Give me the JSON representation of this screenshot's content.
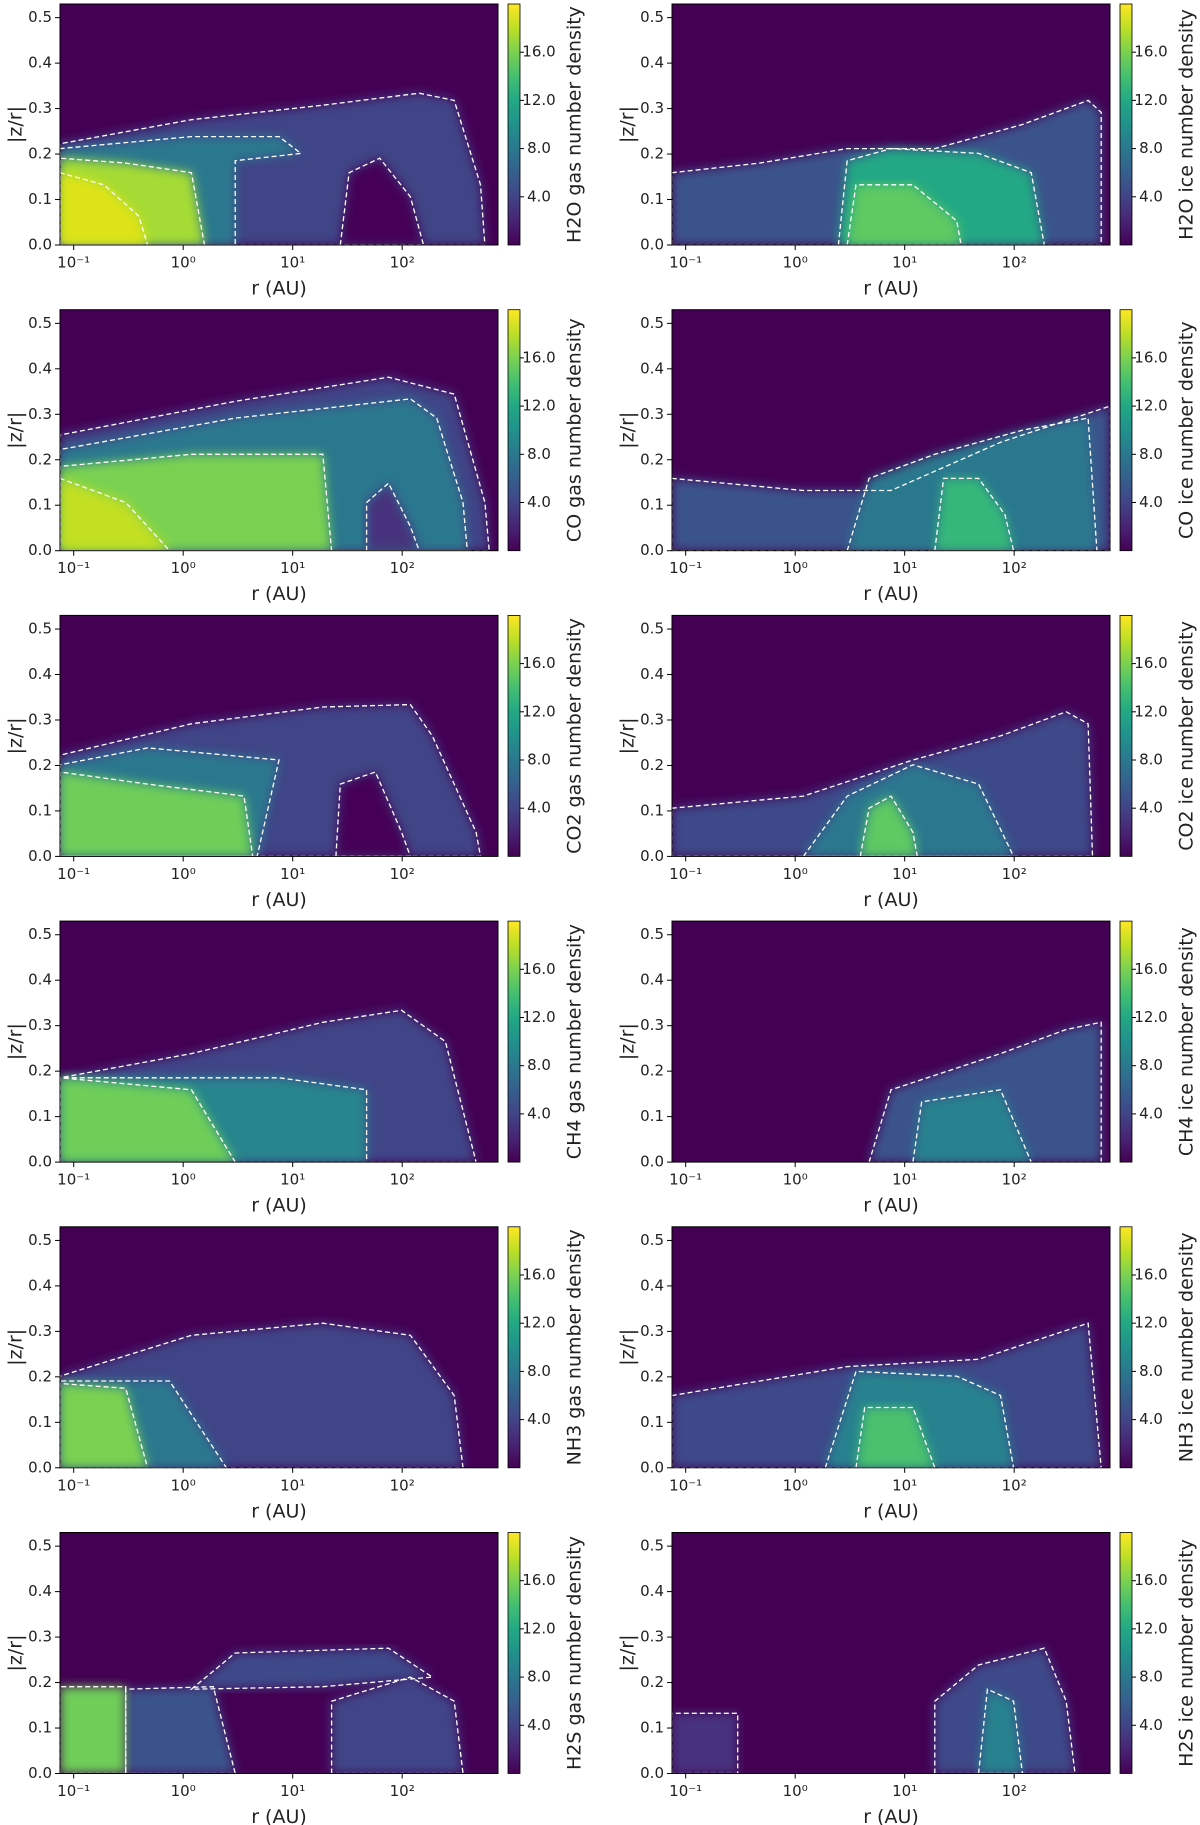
{
  "chart_data": [
    {
      "type": "heatmap",
      "colorbar_label": "H2O gas number density",
      "xlabel": "r (AU)",
      "ylabel": "|z/r|",
      "colormap": "viridis",
      "log_x": true,
      "xlim": [
        0.075,
        750
      ],
      "ylim": [
        0,
        0.53
      ],
      "clim": [
        0,
        20
      ],
      "xticks": [
        {
          "value": 0.1,
          "label": "10⁻¹"
        },
        {
          "value": 1,
          "label": "10⁰"
        },
        {
          "value": 10,
          "label": "10¹"
        },
        {
          "value": 100,
          "label": "10²"
        }
      ],
      "yticks": [
        {
          "value": 0,
          "label": "0.0"
        },
        {
          "value": 0.1,
          "label": "0.1"
        },
        {
          "value": 0.2,
          "label": "0.2"
        },
        {
          "value": 0.3,
          "label": "0.3"
        },
        {
          "value": 0.4,
          "label": "0.4"
        },
        {
          "value": 0.5,
          "label": "0.5"
        }
      ],
      "cticks": [
        {
          "value": 4,
          "label": "4.0"
        },
        {
          "value": 8,
          "label": "8.0"
        },
        {
          "value": 12,
          "label": "12.0"
        },
        {
          "value": 16,
          "label": "16.0"
        }
      ]
    },
    {
      "type": "heatmap",
      "colorbar_label": "H2O ice number density",
      "xlabel": "r (AU)",
      "ylabel": "|z/r|",
      "colormap": "viridis",
      "log_x": true,
      "xlim": [
        0.075,
        750
      ],
      "ylim": [
        0,
        0.53
      ],
      "clim": [
        0,
        20
      ],
      "xticks": [
        {
          "value": 0.1,
          "label": "10⁻¹"
        },
        {
          "value": 1,
          "label": "10⁰"
        },
        {
          "value": 10,
          "label": "10¹"
        },
        {
          "value": 100,
          "label": "10²"
        }
      ],
      "yticks": [
        {
          "value": 0,
          "label": "0.0"
        },
        {
          "value": 0.1,
          "label": "0.1"
        },
        {
          "value": 0.2,
          "label": "0.2"
        },
        {
          "value": 0.3,
          "label": "0.3"
        },
        {
          "value": 0.4,
          "label": "0.4"
        },
        {
          "value": 0.5,
          "label": "0.5"
        }
      ],
      "cticks": [
        {
          "value": 4,
          "label": "4.0"
        },
        {
          "value": 8,
          "label": "8.0"
        },
        {
          "value": 12,
          "label": "12.0"
        },
        {
          "value": 16,
          "label": "16.0"
        }
      ]
    },
    {
      "type": "heatmap",
      "colorbar_label": "CO gas number density",
      "xlabel": "r (AU)",
      "ylabel": "|z/r|",
      "colormap": "viridis",
      "log_x": true,
      "xlim": [
        0.075,
        750
      ],
      "ylim": [
        0,
        0.53
      ],
      "clim": [
        0,
        20
      ],
      "xticks": [
        {
          "value": 0.1,
          "label": "10⁻¹"
        },
        {
          "value": 1,
          "label": "10⁰"
        },
        {
          "value": 10,
          "label": "10¹"
        },
        {
          "value": 100,
          "label": "10²"
        }
      ],
      "yticks": [
        {
          "value": 0,
          "label": "0.0"
        },
        {
          "value": 0.1,
          "label": "0.1"
        },
        {
          "value": 0.2,
          "label": "0.2"
        },
        {
          "value": 0.3,
          "label": "0.3"
        },
        {
          "value": 0.4,
          "label": "0.4"
        },
        {
          "value": 0.5,
          "label": "0.5"
        }
      ],
      "cticks": [
        {
          "value": 4,
          "label": "4.0"
        },
        {
          "value": 8,
          "label": "8.0"
        },
        {
          "value": 12,
          "label": "12.0"
        },
        {
          "value": 16,
          "label": "16.0"
        }
      ]
    },
    {
      "type": "heatmap",
      "colorbar_label": "CO ice number density",
      "xlabel": "r (AU)",
      "ylabel": "|z/r|",
      "colormap": "viridis",
      "log_x": true,
      "xlim": [
        0.075,
        750
      ],
      "ylim": [
        0,
        0.53
      ],
      "clim": [
        0,
        20
      ],
      "xticks": [
        {
          "value": 0.1,
          "label": "10⁻¹"
        },
        {
          "value": 1,
          "label": "10⁰"
        },
        {
          "value": 10,
          "label": "10¹"
        },
        {
          "value": 100,
          "label": "10²"
        }
      ],
      "yticks": [
        {
          "value": 0,
          "label": "0.0"
        },
        {
          "value": 0.1,
          "label": "0.1"
        },
        {
          "value": 0.2,
          "label": "0.2"
        },
        {
          "value": 0.3,
          "label": "0.3"
        },
        {
          "value": 0.4,
          "label": "0.4"
        },
        {
          "value": 0.5,
          "label": "0.5"
        }
      ],
      "cticks": [
        {
          "value": 4,
          "label": "4.0"
        },
        {
          "value": 8,
          "label": "8.0"
        },
        {
          "value": 12,
          "label": "12.0"
        },
        {
          "value": 16,
          "label": "16.0"
        }
      ]
    },
    {
      "type": "heatmap",
      "colorbar_label": "CO2 gas number density",
      "xlabel": "r (AU)",
      "ylabel": "|z/r|",
      "colormap": "viridis",
      "log_x": true,
      "xlim": [
        0.075,
        750
      ],
      "ylim": [
        0,
        0.53
      ],
      "clim": [
        0,
        20
      ],
      "xticks": [
        {
          "value": 0.1,
          "label": "10⁻¹"
        },
        {
          "value": 1,
          "label": "10⁰"
        },
        {
          "value": 10,
          "label": "10¹"
        },
        {
          "value": 100,
          "label": "10²"
        }
      ],
      "yticks": [
        {
          "value": 0,
          "label": "0.0"
        },
        {
          "value": 0.1,
          "label": "0.1"
        },
        {
          "value": 0.2,
          "label": "0.2"
        },
        {
          "value": 0.3,
          "label": "0.3"
        },
        {
          "value": 0.4,
          "label": "0.4"
        },
        {
          "value": 0.5,
          "label": "0.5"
        }
      ],
      "cticks": [
        {
          "value": 4,
          "label": "4.0"
        },
        {
          "value": 8,
          "label": "8.0"
        },
        {
          "value": 12,
          "label": "12.0"
        },
        {
          "value": 16,
          "label": "16.0"
        }
      ]
    },
    {
      "type": "heatmap",
      "colorbar_label": "CO2 ice number density",
      "xlabel": "r (AU)",
      "ylabel": "|z/r|",
      "colormap": "viridis",
      "log_x": true,
      "xlim": [
        0.075,
        750
      ],
      "ylim": [
        0,
        0.53
      ],
      "clim": [
        0,
        20
      ],
      "xticks": [
        {
          "value": 0.1,
          "label": "10⁻¹"
        },
        {
          "value": 1,
          "label": "10⁰"
        },
        {
          "value": 10,
          "label": "10¹"
        },
        {
          "value": 100,
          "label": "10²"
        }
      ],
      "yticks": [
        {
          "value": 0,
          "label": "0.0"
        },
        {
          "value": 0.1,
          "label": "0.1"
        },
        {
          "value": 0.2,
          "label": "0.2"
        },
        {
          "value": 0.3,
          "label": "0.3"
        },
        {
          "value": 0.4,
          "label": "0.4"
        },
        {
          "value": 0.5,
          "label": "0.5"
        }
      ],
      "cticks": [
        {
          "value": 4,
          "label": "4.0"
        },
        {
          "value": 8,
          "label": "8.0"
        },
        {
          "value": 12,
          "label": "12.0"
        },
        {
          "value": 16,
          "label": "16.0"
        }
      ]
    },
    {
      "type": "heatmap",
      "colorbar_label": "CH4 gas number density",
      "xlabel": "r (AU)",
      "ylabel": "|z/r|",
      "colormap": "viridis",
      "log_x": true,
      "xlim": [
        0.075,
        750
      ],
      "ylim": [
        0,
        0.53
      ],
      "clim": [
        0,
        20
      ],
      "xticks": [
        {
          "value": 0.1,
          "label": "10⁻¹"
        },
        {
          "value": 1,
          "label": "10⁰"
        },
        {
          "value": 10,
          "label": "10¹"
        },
        {
          "value": 100,
          "label": "10²"
        }
      ],
      "yticks": [
        {
          "value": 0,
          "label": "0.0"
        },
        {
          "value": 0.1,
          "label": "0.1"
        },
        {
          "value": 0.2,
          "label": "0.2"
        },
        {
          "value": 0.3,
          "label": "0.3"
        },
        {
          "value": 0.4,
          "label": "0.4"
        },
        {
          "value": 0.5,
          "label": "0.5"
        }
      ],
      "cticks": [
        {
          "value": 4,
          "label": "4.0"
        },
        {
          "value": 8,
          "label": "8.0"
        },
        {
          "value": 12,
          "label": "12.0"
        },
        {
          "value": 16,
          "label": "16.0"
        }
      ]
    },
    {
      "type": "heatmap",
      "colorbar_label": "CH4 ice number density",
      "xlabel": "r (AU)",
      "ylabel": "|z/r|",
      "colormap": "viridis",
      "log_x": true,
      "xlim": [
        0.075,
        750
      ],
      "ylim": [
        0,
        0.53
      ],
      "clim": [
        0,
        20
      ],
      "xticks": [
        {
          "value": 0.1,
          "label": "10⁻¹"
        },
        {
          "value": 1,
          "label": "10⁰"
        },
        {
          "value": 10,
          "label": "10¹"
        },
        {
          "value": 100,
          "label": "10²"
        }
      ],
      "yticks": [
        {
          "value": 0,
          "label": "0.0"
        },
        {
          "value": 0.1,
          "label": "0.1"
        },
        {
          "value": 0.2,
          "label": "0.2"
        },
        {
          "value": 0.3,
          "label": "0.3"
        },
        {
          "value": 0.4,
          "label": "0.4"
        },
        {
          "value": 0.5,
          "label": "0.5"
        }
      ],
      "cticks": [
        {
          "value": 4,
          "label": "4.0"
        },
        {
          "value": 8,
          "label": "8.0"
        },
        {
          "value": 12,
          "label": "12.0"
        },
        {
          "value": 16,
          "label": "16.0"
        }
      ]
    },
    {
      "type": "heatmap",
      "colorbar_label": "NH3 gas number density",
      "xlabel": "r (AU)",
      "ylabel": "|z/r|",
      "colormap": "viridis",
      "log_x": true,
      "xlim": [
        0.075,
        750
      ],
      "ylim": [
        0,
        0.53
      ],
      "clim": [
        0,
        20
      ],
      "xticks": [
        {
          "value": 0.1,
          "label": "10⁻¹"
        },
        {
          "value": 1,
          "label": "10⁰"
        },
        {
          "value": 10,
          "label": "10¹"
        },
        {
          "value": 100,
          "label": "10²"
        }
      ],
      "yticks": [
        {
          "value": 0,
          "label": "0.0"
        },
        {
          "value": 0.1,
          "label": "0.1"
        },
        {
          "value": 0.2,
          "label": "0.2"
        },
        {
          "value": 0.3,
          "label": "0.3"
        },
        {
          "value": 0.4,
          "label": "0.4"
        },
        {
          "value": 0.5,
          "label": "0.5"
        }
      ],
      "cticks": [
        {
          "value": 4,
          "label": "4.0"
        },
        {
          "value": 8,
          "label": "8.0"
        },
        {
          "value": 12,
          "label": "12.0"
        },
        {
          "value": 16,
          "label": "16.0"
        }
      ]
    },
    {
      "type": "heatmap",
      "colorbar_label": "NH3 ice number density",
      "xlabel": "r (AU)",
      "ylabel": "|z/r|",
      "colormap": "viridis",
      "log_x": true,
      "xlim": [
        0.075,
        750
      ],
      "ylim": [
        0,
        0.53
      ],
      "clim": [
        0,
        20
      ],
      "xticks": [
        {
          "value": 0.1,
          "label": "10⁻¹"
        },
        {
          "value": 1,
          "label": "10⁰"
        },
        {
          "value": 10,
          "label": "10¹"
        },
        {
          "value": 100,
          "label": "10²"
        }
      ],
      "yticks": [
        {
          "value": 0,
          "label": "0.0"
        },
        {
          "value": 0.1,
          "label": "0.1"
        },
        {
          "value": 0.2,
          "label": "0.2"
        },
        {
          "value": 0.3,
          "label": "0.3"
        },
        {
          "value": 0.4,
          "label": "0.4"
        },
        {
          "value": 0.5,
          "label": "0.5"
        }
      ],
      "cticks": [
        {
          "value": 4,
          "label": "4.0"
        },
        {
          "value": 8,
          "label": "8.0"
        },
        {
          "value": 12,
          "label": "12.0"
        },
        {
          "value": 16,
          "label": "16.0"
        }
      ]
    },
    {
      "type": "heatmap",
      "colorbar_label": "H2S gas number density",
      "xlabel": "r (AU)",
      "ylabel": "|z/r|",
      "colormap": "viridis",
      "log_x": true,
      "xlim": [
        0.075,
        750
      ],
      "ylim": [
        0,
        0.53
      ],
      "clim": [
        0,
        20
      ],
      "xticks": [
        {
          "value": 0.1,
          "label": "10⁻¹"
        },
        {
          "value": 1,
          "label": "10⁰"
        },
        {
          "value": 10,
          "label": "10¹"
        },
        {
          "value": 100,
          "label": "10²"
        }
      ],
      "yticks": [
        {
          "value": 0,
          "label": "0.0"
        },
        {
          "value": 0.1,
          "label": "0.1"
        },
        {
          "value": 0.2,
          "label": "0.2"
        },
        {
          "value": 0.3,
          "label": "0.3"
        },
        {
          "value": 0.4,
          "label": "0.4"
        },
        {
          "value": 0.5,
          "label": "0.5"
        }
      ],
      "cticks": [
        {
          "value": 4,
          "label": "4.0"
        },
        {
          "value": 8,
          "label": "8.0"
        },
        {
          "value": 12,
          "label": "12.0"
        },
        {
          "value": 16,
          "label": "16.0"
        }
      ]
    },
    {
      "type": "heatmap",
      "colorbar_label": "H2S ice number density",
      "xlabel": "r (AU)",
      "ylabel": "|z/r|",
      "colormap": "viridis",
      "log_x": true,
      "xlim": [
        0.075,
        750
      ],
      "ylim": [
        0,
        0.53
      ],
      "clim": [
        0,
        20
      ],
      "xticks": [
        {
          "value": 0.1,
          "label": "10⁻¹"
        },
        {
          "value": 1,
          "label": "10⁰"
        },
        {
          "value": 10,
          "label": "10¹"
        },
        {
          "value": 100,
          "label": "10²"
        }
      ],
      "yticks": [
        {
          "value": 0,
          "label": "0.0"
        },
        {
          "value": 0.1,
          "label": "0.1"
        },
        {
          "value": 0.2,
          "label": "0.2"
        },
        {
          "value": 0.3,
          "label": "0.3"
        },
        {
          "value": 0.4,
          "label": "0.4"
        },
        {
          "value": 0.5,
          "label": "0.5"
        }
      ],
      "cticks": [
        {
          "value": 4,
          "label": "4.0"
        },
        {
          "value": 8,
          "label": "8.0"
        },
        {
          "value": 12,
          "label": "12.0"
        },
        {
          "value": 16,
          "label": "16.0"
        }
      ]
    }
  ]
}
